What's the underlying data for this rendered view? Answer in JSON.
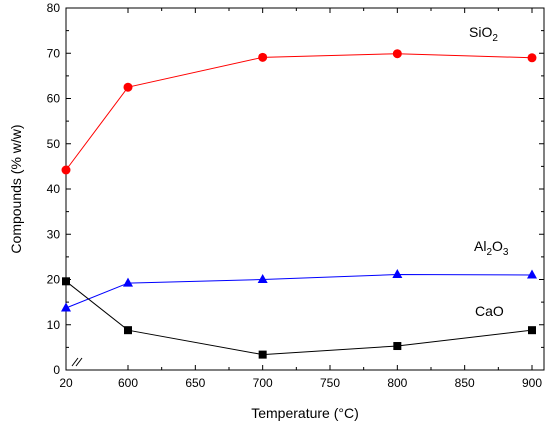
{
  "chart_data": {
    "type": "line",
    "title": "",
    "xlabel": "Temperature (°C)",
    "ylabel": "Compounds (% w/w)",
    "ylim": [
      0,
      80
    ],
    "x_scale": "broken",
    "x_tick_labels": [
      "20",
      "600",
      "650",
      "700",
      "750",
      "800",
      "850",
      "900"
    ],
    "y_tick_labels": [
      "0",
      "10",
      "20",
      "30",
      "40",
      "50",
      "60",
      "70",
      "80"
    ],
    "x": [
      20,
      600,
      700,
      800,
      900
    ],
    "series": [
      {
        "name": "SiO2",
        "label_main": "SiO",
        "label_sub": "2",
        "color": "#ff0000",
        "marker": "circle",
        "values": [
          44.2,
          62.5,
          69.1,
          69.9,
          69.0
        ]
      },
      {
        "name": "Al2O3",
        "label_main": "Al",
        "label_sub": "2",
        "label_main2": "O",
        "label_sub2": "3",
        "color": "#0000ff",
        "marker": "triangle",
        "values": [
          13.7,
          19.2,
          20.0,
          21.1,
          21.0
        ]
      },
      {
        "name": "CaO",
        "label_main": "CaO",
        "color": "#000000",
        "marker": "square",
        "values": [
          19.6,
          8.8,
          3.4,
          5.3,
          8.8
        ]
      }
    ],
    "grid": false,
    "legend": "inline-labels-right"
  }
}
